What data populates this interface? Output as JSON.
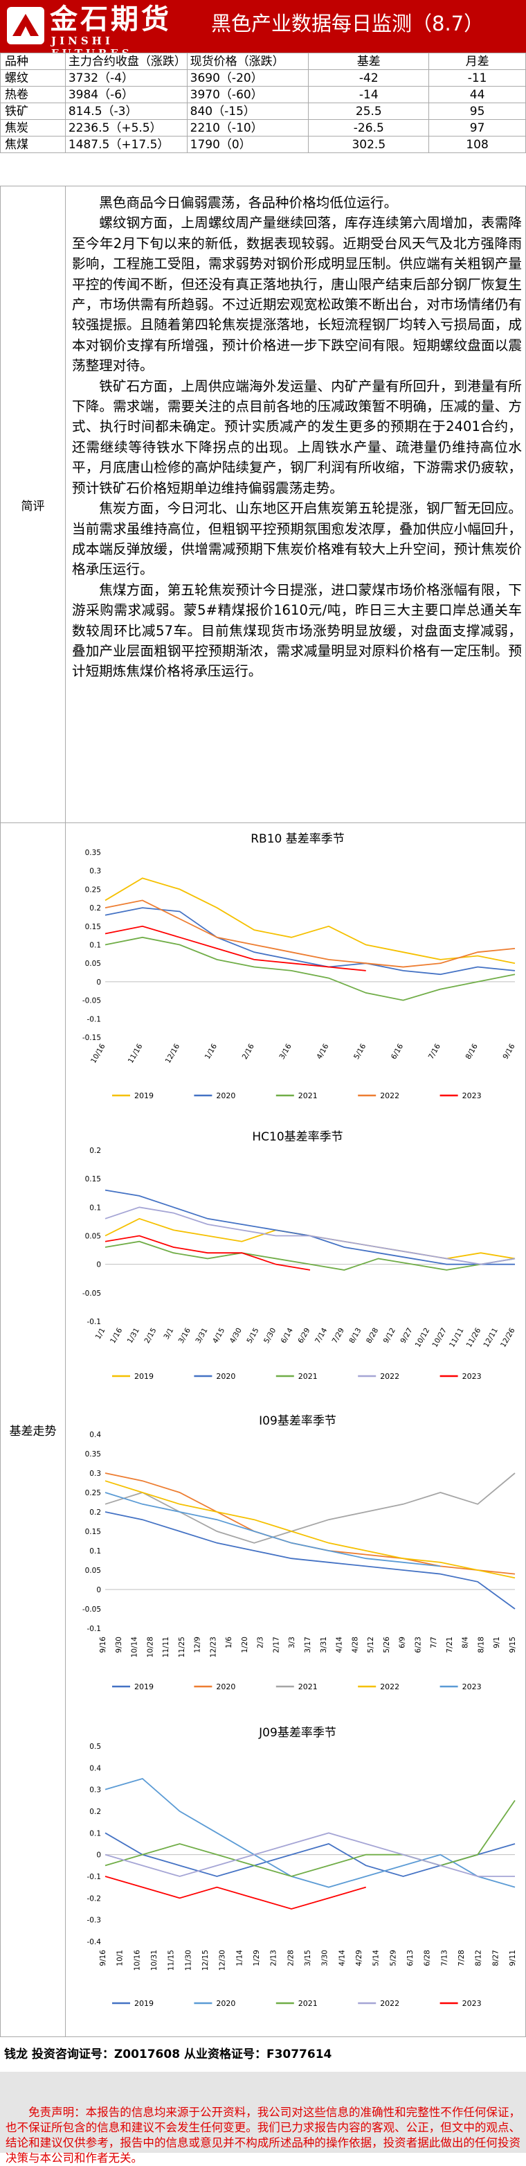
{
  "header": {
    "logo_cn": "金石期货",
    "logo_en": "JINSHI FUTURES",
    "title": "黑色产业数据每日监测（8.7）"
  },
  "table": {
    "columns": [
      "品种",
      "主力合约收盘（涨跌）",
      "现货价格（涨跌）",
      "基差",
      "月差"
    ],
    "rows": [
      {
        "name": "螺纹",
        "futures": "3732（-4）",
        "spot": "3690（-20）",
        "basis": "-42",
        "spread": "-11"
      },
      {
        "name": "热卷",
        "futures": "3984（-6）",
        "spot": "3970（-60）",
        "basis": "-14",
        "spread": "44"
      },
      {
        "name": "铁矿",
        "futures": "814.5（-3）",
        "spot": "840（-15）",
        "basis": "25.5",
        "spread": "95"
      },
      {
        "name": "焦炭",
        "futures": "2236.5（+5.5）",
        "spot": "2210（-10）",
        "basis": "-26.5",
        "spread": "97"
      },
      {
        "name": "焦煤",
        "futures": "1487.5（+17.5）",
        "spot": "1790（0）",
        "basis": "302.5",
        "spread": "108"
      }
    ]
  },
  "commentary": {
    "label": "简评",
    "paragraphs": [
      "黑色商品今日偏弱震荡，各品种价格均低位运行。",
      "螺纹钢方面，上周螺纹周产量继续回落，库存连续第六周增加，表需降至今年2月下旬以来的新低，数据表现较弱。近期受台风天气及北方强降雨影响，工程施工受阻，需求弱势对钢价形成明显压制。供应端有关粗钢产量平控的传闻不断，但还没有真正落地执行，唐山限产结束后部分钢厂恢复生产，市场供需有所趋弱。不过近期宏观宽松政策不断出台，对市场情绪仍有较强提振。且随着第四轮焦炭提涨落地，长短流程钢厂均转入亏损局面，成本对钢价支撑有所增强，预计价格进一步下跌空间有限。短期螺纹盘面以震荡整理对待。",
      "铁矿石方面，上周供应端海外发运量、内矿产量有所回升，到港量有所下降。需求端，需要关注的点目前各地的压减政策暂不明确，压减的量、方式、执行时间都未确定。预计实质减产的发生更多的预期在于2401合约，还需继续等待铁水下降拐点的出现。上周铁水产量、疏港量仍维持高位水平，月底唐山检修的高炉陆续复产，钢厂利润有所收缩，下游需求仍疲软，预计铁矿石价格短期单边维持偏弱震荡走势。",
      "焦炭方面，今日河北、山东地区开启焦炭第五轮提涨，钢厂暂无回应。当前需求虽维持高位，但粗钢平控预期氛围愈发浓厚，叠加供应小幅回升，成本端反弹放缓，供增需减预期下焦炭价格难有较大上升空间，预计焦炭价格承压运行。",
      "焦煤方面，第五轮焦炭预计今日提涨，进口蒙煤市场价格涨幅有限，下游采购需求减弱。蒙5#精煤报价1610元/吨，昨日三大主要口岸总通关车数较周环比减57车。目前焦煤现货市场涨势明显放缓，对盘面支撑减弱，叠加产业层面粗钢平控预期渐浓，需求减量明显对原料价格有一定压制。预计短期炼焦煤价格将承压运行。"
    ]
  },
  "charts_label": "基差走势",
  "chart_data": [
    {
      "type": "line",
      "title": "RB10 基差率季节",
      "ylim": [
        -0.15,
        0.35
      ],
      "yticks": [
        "0.35",
        "0.3",
        "0.25",
        "0.2",
        "0.15",
        "0.1",
        "0.05",
        "0",
        "-0.05",
        "-0.1",
        "-0.15"
      ],
      "xticks": [
        "10/16",
        "11/16",
        "12/16",
        "1/16",
        "2/16",
        "3/16",
        "4/16",
        "5/16",
        "6/16",
        "7/16",
        "8/16",
        "9/16"
      ],
      "series": [
        {
          "name": "2019",
          "color": "#f5c000",
          "values": [
            0.22,
            0.28,
            0.25,
            0.2,
            0.14,
            0.12,
            0.15,
            0.1,
            0.08,
            0.06,
            0.07,
            0.05
          ]
        },
        {
          "name": "2020",
          "color": "#4472c4",
          "values": [
            0.18,
            0.2,
            0.19,
            0.12,
            0.08,
            0.06,
            0.04,
            0.05,
            0.03,
            0.02,
            0.04,
            0.03
          ]
        },
        {
          "name": "2021",
          "color": "#70ad47",
          "values": [
            0.1,
            0.12,
            0.1,
            0.06,
            0.04,
            0.03,
            0.01,
            -0.03,
            -0.05,
            -0.02,
            0.0,
            0.02
          ]
        },
        {
          "name": "2022",
          "color": "#ed7d31",
          "values": [
            0.2,
            0.22,
            0.17,
            0.12,
            0.1,
            0.08,
            0.06,
            0.05,
            0.04,
            0.05,
            0.08,
            0.09
          ]
        },
        {
          "name": "2023",
          "color": "#ff0000",
          "values": [
            0.13,
            0.15,
            0.12,
            0.09,
            0.06,
            0.05,
            0.04,
            0.03
          ]
        }
      ]
    },
    {
      "type": "line",
      "title": "HC10基差率季节",
      "ylim": [
        -0.1,
        0.2
      ],
      "yticks": [
        "0.2",
        "0.15",
        "0.1",
        "0.05",
        "0",
        "-0.05",
        "-0.1"
      ],
      "xticks": [
        "1/1",
        "1/16",
        "1/31",
        "2/15",
        "3/1",
        "3/16",
        "3/31",
        "4/15",
        "4/30",
        "5/15",
        "5/30",
        "6/14",
        "6/29",
        "7/14",
        "7/29",
        "8/13",
        "8/28",
        "9/12",
        "9/27",
        "10/12",
        "10/27",
        "11/11",
        "11/26",
        "12/11",
        "12/26"
      ],
      "series": [
        {
          "name": "2019",
          "color": "#f5c000",
          "values": [
            0.05,
            0.08,
            0.06,
            0.05,
            0.04,
            0.06,
            0.05,
            0.04,
            0.03,
            0.02,
            0.01,
            0.02,
            0.01
          ]
        },
        {
          "name": "2020",
          "color": "#4472c4",
          "values": [
            0.13,
            0.12,
            0.1,
            0.08,
            0.07,
            0.06,
            0.05,
            0.03,
            0.02,
            0.01,
            0.0,
            0.0,
            0.0
          ]
        },
        {
          "name": "2021",
          "color": "#70ad47",
          "values": [
            0.03,
            0.04,
            0.02,
            0.01,
            0.02,
            0.01,
            0.0,
            -0.01,
            0.01,
            0.0,
            -0.01,
            0.0,
            0.01
          ]
        },
        {
          "name": "2022",
          "color": "#a5a5d5",
          "values": [
            0.08,
            0.1,
            0.09,
            0.07,
            0.06,
            0.05,
            0.05,
            0.04,
            0.03,
            0.02,
            0.01,
            0.0,
            0.01
          ]
        },
        {
          "name": "2023",
          "color": "#ff0000",
          "values": [
            0.04,
            0.05,
            0.03,
            0.02,
            0.02,
            0.0,
            -0.01
          ]
        }
      ]
    },
    {
      "type": "line",
      "title": "I09基差率季节",
      "ylim": [
        -0.1,
        0.4
      ],
      "yticks": [
        "0.4",
        "0.35",
        "0.3",
        "0.25",
        "0.2",
        "0.15",
        "0.1",
        "0.05",
        "0",
        "-0.05",
        "-0.1"
      ],
      "xticks": [
        "9/16",
        "9/30",
        "10/14",
        "10/28",
        "11/11",
        "11/25",
        "12/9",
        "12/23",
        "1/6",
        "1/20",
        "2/3",
        "2/17",
        "3/3",
        "3/17",
        "3/31",
        "4/14",
        "4/28",
        "5/12",
        "5/26",
        "6/9",
        "6/23",
        "7/7",
        "7/21",
        "8/4",
        "8/18",
        "9/1",
        "9/15"
      ],
      "series": [
        {
          "name": "2019",
          "color": "#4472c4",
          "values": [
            0.2,
            0.18,
            0.15,
            0.12,
            0.1,
            0.08,
            0.07,
            0.06,
            0.05,
            0.04,
            0.02,
            -0.05
          ]
        },
        {
          "name": "2020",
          "color": "#ed7d31",
          "values": [
            0.3,
            0.28,
            0.25,
            0.2,
            0.15,
            0.12,
            0.1,
            0.09,
            0.08,
            0.06,
            0.05,
            0.04
          ]
        },
        {
          "name": "2021",
          "color": "#a5a5a5",
          "values": [
            0.22,
            0.25,
            0.2,
            0.15,
            0.12,
            0.15,
            0.18,
            0.2,
            0.22,
            0.25,
            0.22,
            0.3
          ]
        },
        {
          "name": "2022",
          "color": "#f5c000",
          "values": [
            0.28,
            0.25,
            0.22,
            0.2,
            0.18,
            0.15,
            0.12,
            0.1,
            0.08,
            0.07,
            0.05,
            0.03
          ]
        },
        {
          "name": "2023",
          "color": "#5b9bd5",
          "values": [
            0.25,
            0.22,
            0.2,
            0.18,
            0.15,
            0.12,
            0.1,
            0.08,
            0.07,
            0.06
          ]
        }
      ]
    },
    {
      "type": "line",
      "title": "J09基差率季节",
      "ylim": [
        -0.4,
        0.5
      ],
      "yticks": [
        "0.5",
        "0.4",
        "0.3",
        "0.2",
        "0.1",
        "0",
        "-0.1",
        "-0.2",
        "-0.3",
        "-0.4"
      ],
      "xticks": [
        "9/16",
        "10/1",
        "10/16",
        "10/31",
        "11/15",
        "11/30",
        "12/15",
        "12/30",
        "1/14",
        "1/29",
        "2/13",
        "2/28",
        "3/15",
        "3/30",
        "4/14",
        "4/29",
        "5/14",
        "5/29",
        "6/13",
        "6/28",
        "7/13",
        "7/28",
        "8/12",
        "8/27",
        "9/11"
      ],
      "series": [
        {
          "name": "2019",
          "color": "#4472c4",
          "values": [
            0.1,
            0.0,
            -0.05,
            -0.1,
            -0.05,
            0.0,
            0.05,
            -0.05,
            -0.1,
            -0.05,
            0.0,
            0.05
          ]
        },
        {
          "name": "2020",
          "color": "#5b9bd5",
          "values": [
            0.3,
            0.35,
            0.2,
            0.1,
            0.0,
            -0.1,
            -0.15,
            -0.1,
            -0.05,
            0.0,
            -0.1,
            -0.15
          ]
        },
        {
          "name": "2021",
          "color": "#70ad47",
          "values": [
            -0.05,
            0.0,
            0.05,
            0.0,
            -0.05,
            -0.1,
            -0.05,
            0.0,
            0.0,
            -0.05,
            0.0,
            0.25
          ]
        },
        {
          "name": "2022",
          "color": "#a5a5d5",
          "values": [
            0.0,
            -0.05,
            -0.1,
            -0.05,
            0.0,
            0.05,
            0.1,
            0.05,
            0.0,
            -0.05,
            -0.1,
            -0.1
          ]
        },
        {
          "name": "2023",
          "color": "#ff0000",
          "values": [
            -0.1,
            -0.15,
            -0.2,
            -0.15,
            -0.2,
            -0.25,
            -0.2,
            -0.15
          ]
        }
      ]
    }
  ],
  "footer": {
    "author": "钱龙 投资咨询证号：Z0017608 从业资格证号：F3077614",
    "disclaimer": "免责声明：本报告的信息均来源于公开资料，我公司对这些信息的准确性和完整性不作任何保证，也不保证所包含的信息和建议不会发生任何变更。我们已力求报告内容的客观、公正，但文中的观点、结论和建议仅供参考，报告中的信息或意见并不构成所述品种的操作依据，投资者据此做出的任何投资决策与本公司和作者无关。"
  }
}
